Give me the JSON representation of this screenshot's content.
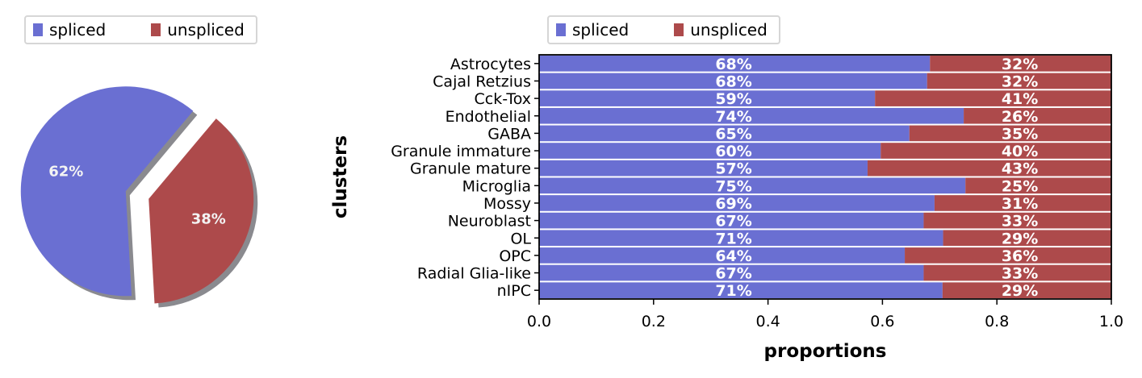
{
  "colors": {
    "spliced": "#6a6fd2",
    "unspliced": "#ad4a4b",
    "shadow": "#8a8a8f"
  },
  "legend": {
    "spliced": "spliced",
    "unspliced": "unspliced"
  },
  "chart_data": [
    {
      "type": "pie",
      "labels": [
        "spliced",
        "unspliced"
      ],
      "values": [
        62,
        38
      ],
      "value_labels": [
        "62%",
        "38%"
      ],
      "explode": true,
      "shadow": true,
      "legend_placement": "top-left"
    },
    {
      "type": "bar",
      "orientation": "horizontal",
      "stacked": true,
      "categories": [
        "Astrocytes",
        "Cajal Retzius",
        "Cck-Tox",
        "Endothelial",
        "GABA",
        "Granule immature",
        "Granule mature",
        "Microglia",
        "Mossy",
        "Neuroblast",
        "OL",
        "OPC",
        "Radial Glia-like",
        "nIPC"
      ],
      "series": [
        {
          "name": "spliced",
          "values": [
            0.683,
            0.678,
            0.587,
            0.742,
            0.647,
            0.597,
            0.574,
            0.745,
            0.691,
            0.672,
            0.706,
            0.639,
            0.672,
            0.705
          ],
          "labels": [
            "68%",
            "68%",
            "59%",
            "74%",
            "65%",
            "60%",
            "57%",
            "75%",
            "69%",
            "67%",
            "71%",
            "64%",
            "67%",
            "71%"
          ]
        },
        {
          "name": "unspliced",
          "values": [
            0.317,
            0.322,
            0.413,
            0.258,
            0.353,
            0.403,
            0.426,
            0.255,
            0.309,
            0.328,
            0.294,
            0.361,
            0.328,
            0.295
          ],
          "labels": [
            "32%",
            "32%",
            "41%",
            "26%",
            "35%",
            "40%",
            "43%",
            "25%",
            "31%",
            "33%",
            "29%",
            "36%",
            "33%",
            "29%"
          ]
        }
      ],
      "xlabel": "proportions",
      "ylabel": "clusters",
      "xlim": [
        0,
        1
      ],
      "xticks": [
        "0.0",
        "0.2",
        "0.4",
        "0.6",
        "0.8",
        "1.0"
      ],
      "legend_placement": "top-left"
    }
  ]
}
